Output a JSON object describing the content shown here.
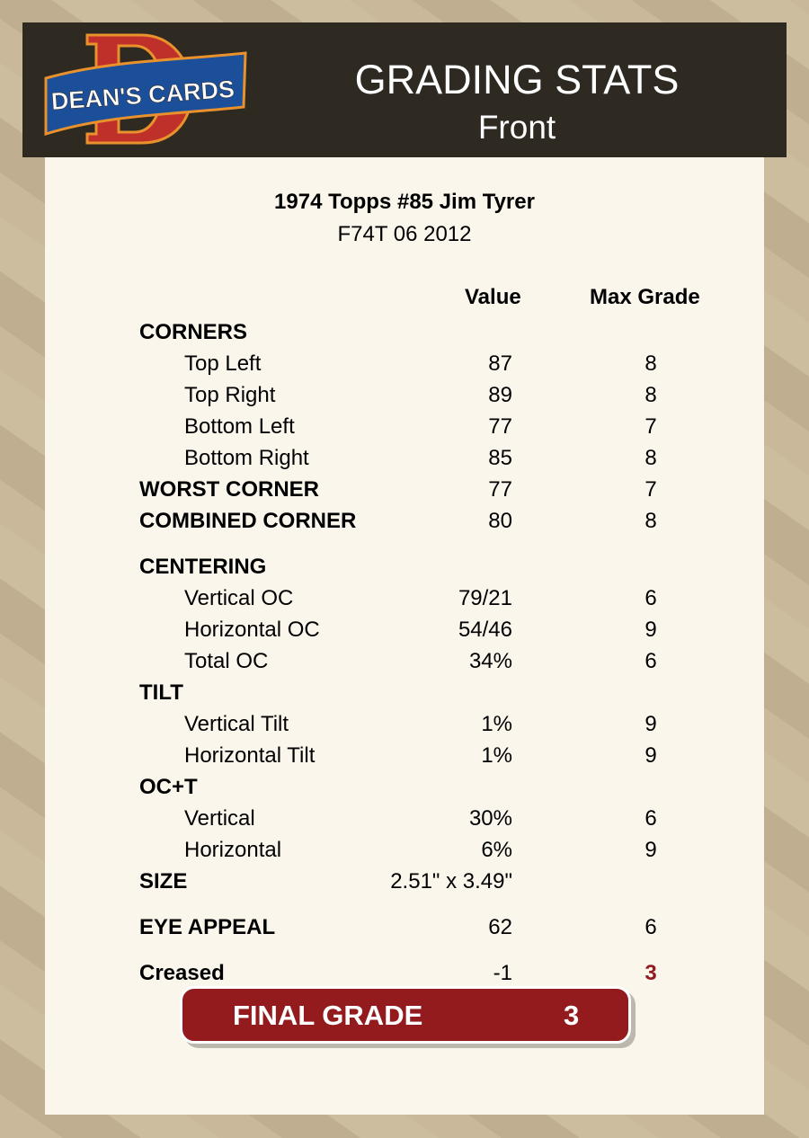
{
  "header": {
    "logo_text": "DEAN'S CARDS",
    "title": "GRADING STATS",
    "subtitle": "Front"
  },
  "card": {
    "name": "1974 Topps #85 Jim Tyrer",
    "code": "F74T 06 2012"
  },
  "columns": {
    "value": "Value",
    "max": "Max Grade"
  },
  "rows": [
    {
      "label": "CORNERS",
      "type": "section",
      "value": "",
      "max": ""
    },
    {
      "label": "Top Left",
      "type": "item",
      "value": "87",
      "max": "8"
    },
    {
      "label": "Top Right",
      "type": "item",
      "value": "89",
      "max": "8"
    },
    {
      "label": "Bottom Left",
      "type": "item",
      "value": "77",
      "max": "7"
    },
    {
      "label": "Bottom Right",
      "type": "item",
      "value": "85",
      "max": "8"
    },
    {
      "label": "WORST CORNER",
      "type": "section",
      "value": "77",
      "max": "7"
    },
    {
      "label": "COMBINED CORNER",
      "type": "section",
      "value": "80",
      "max": "8"
    },
    {
      "label": "CENTERING",
      "type": "section",
      "value": "",
      "max": ""
    },
    {
      "label": "Vertical OC",
      "type": "item",
      "value": "79/21",
      "max": "6"
    },
    {
      "label": "Horizontal OC",
      "type": "item",
      "value": "54/46",
      "max": "9"
    },
    {
      "label": "Total OC",
      "type": "item",
      "value": "34%",
      "max": "6"
    },
    {
      "label": "TILT",
      "type": "section",
      "value": "",
      "max": ""
    },
    {
      "label": "Vertical Tilt",
      "type": "item",
      "value": "1%",
      "max": "9"
    },
    {
      "label": "Horizontal Tilt",
      "type": "item",
      "value": "1%",
      "max": "9"
    },
    {
      "label": "OC+T",
      "type": "section",
      "value": "",
      "max": ""
    },
    {
      "label": "Vertical",
      "type": "item",
      "value": "30%",
      "max": "6"
    },
    {
      "label": "Horizontal",
      "type": "item",
      "value": "6%",
      "max": "9"
    },
    {
      "label": "SIZE",
      "type": "section",
      "value": "2.51\" x 3.49\"",
      "max": ""
    },
    {
      "label": "EYE APPEAL",
      "type": "section",
      "value": "62",
      "max": "6"
    },
    {
      "label": "Creased",
      "type": "section",
      "value": "-1",
      "max": "3",
      "alert": true
    }
  ],
  "final": {
    "label": "FINAL GRADE",
    "value": "3"
  },
  "colors": {
    "header_bg": "#2e2a22",
    "panel_bg": "#fbf6ec",
    "accent_red": "#931b1d"
  }
}
